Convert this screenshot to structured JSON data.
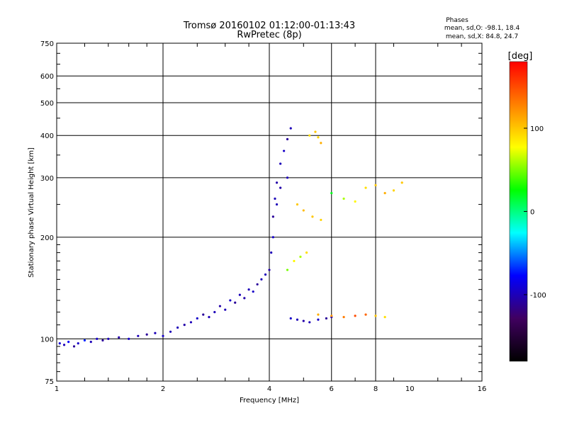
{
  "chart_data": {
    "type": "scatter",
    "title": "Tromsø 20160102 01:12:00-01:13:43",
    "subtitle": "RwPretec (8p)",
    "stats_header": "Phases",
    "stats_O": "mean, sd,O: -98.1, 18.4",
    "stats_X": "mean, sd,X:  84.8, 24.7",
    "xlabel": "Frequency [MHz]",
    "ylabel": "Stationary phase Virtual Height [km]",
    "x_scale": "log",
    "y_scale": "log",
    "xlim": [
      1,
      16
    ],
    "ylim": [
      75,
      750
    ],
    "x_ticks": [
      1,
      2,
      4,
      6,
      8,
      10,
      16
    ],
    "y_ticks": [
      75,
      100,
      200,
      300,
      400,
      500,
      600,
      750
    ],
    "x_gridlines": [
      2,
      4,
      6,
      8
    ],
    "y_gridlines": [
      100,
      200,
      300,
      400,
      500,
      600
    ],
    "colorbar": {
      "label": "[deg]",
      "range": [
        -180,
        180
      ],
      "ticks": [
        -100,
        0,
        100
      ],
      "colormap": [
        "#000000",
        "#400060",
        "#0000ff",
        "#00ffff",
        "#00ff00",
        "#ffff00",
        "#ff8000",
        "#ff0000"
      ]
    },
    "series": [
      {
        "values": [
          [
            1.02,
            97,
            -90
          ],
          [
            1.05,
            96,
            -100
          ],
          [
            1.08,
            98,
            -80
          ],
          [
            1.12,
            95,
            -110
          ],
          [
            1.15,
            97,
            -95
          ],
          [
            1.2,
            99,
            -70
          ],
          [
            1.25,
            98,
            -100
          ],
          [
            1.3,
            100,
            -95
          ],
          [
            1.35,
            99,
            -110
          ],
          [
            1.4,
            100,
            -100
          ],
          [
            1.5,
            101,
            -105
          ],
          [
            1.6,
            100,
            -95
          ],
          [
            1.7,
            102,
            -100
          ],
          [
            1.8,
            103,
            -110
          ],
          [
            1.9,
            104,
            -100
          ],
          [
            2.0,
            102,
            -95
          ],
          [
            2.1,
            105,
            -100
          ],
          [
            2.2,
            108,
            -100
          ],
          [
            2.3,
            110,
            -105
          ],
          [
            2.4,
            112,
            -100
          ],
          [
            2.5,
            115,
            -95
          ],
          [
            2.6,
            118,
            -110
          ],
          [
            2.7,
            116,
            -100
          ],
          [
            2.8,
            120,
            -100
          ],
          [
            2.9,
            125,
            -105
          ],
          [
            3.0,
            122,
            -100
          ],
          [
            3.1,
            130,
            -95
          ],
          [
            3.2,
            128,
            -110
          ],
          [
            3.3,
            135,
            -100
          ],
          [
            3.4,
            132,
            -105
          ],
          [
            3.5,
            140,
            -100
          ],
          [
            3.6,
            138,
            -95
          ],
          [
            3.7,
            145,
            -110
          ],
          [
            3.8,
            150,
            -100
          ],
          [
            3.9,
            155,
            -100
          ],
          [
            4.0,
            160,
            -105
          ],
          [
            4.05,
            180,
            -100
          ],
          [
            4.1,
            200,
            -95
          ],
          [
            4.1,
            230,
            -110
          ],
          [
            4.15,
            260,
            -100
          ],
          [
            4.2,
            290,
            -105
          ],
          [
            4.3,
            330,
            -100
          ],
          [
            4.4,
            360,
            -95
          ],
          [
            4.5,
            390,
            -110
          ],
          [
            4.6,
            420,
            -100
          ],
          [
            4.2,
            250,
            -100
          ],
          [
            4.3,
            280,
            -105
          ],
          [
            4.5,
            300,
            -100
          ]
        ]
      },
      {
        "values": [
          [
            4.6,
            115,
            -95
          ],
          [
            4.8,
            114,
            -100
          ],
          [
            5.0,
            113,
            -105
          ],
          [
            5.2,
            112,
            -100
          ],
          [
            5.5,
            114,
            -95
          ],
          [
            5.8,
            115,
            -110
          ],
          [
            6.0,
            116,
            -100
          ]
        ]
      },
      {
        "values": [
          [
            4.5,
            160,
            50
          ],
          [
            4.7,
            170,
            80
          ],
          [
            4.9,
            175,
            60
          ],
          [
            5.1,
            180,
            90
          ],
          [
            5.2,
            400,
            90
          ],
          [
            5.4,
            410,
            100
          ],
          [
            5.5,
            395,
            95
          ],
          [
            5.6,
            380,
            110
          ],
          [
            4.8,
            250,
            100
          ],
          [
            5.0,
            240,
            105
          ],
          [
            5.3,
            230,
            100
          ],
          [
            5.6,
            225,
            95
          ],
          [
            6.0,
            270,
            20
          ],
          [
            6.5,
            260,
            60
          ],
          [
            7.0,
            255,
            80
          ],
          [
            7.5,
            280,
            90
          ],
          [
            8.0,
            285,
            100
          ],
          [
            8.5,
            270,
            110
          ],
          [
            9.0,
            275,
            95
          ],
          [
            9.5,
            290,
            100
          ],
          [
            5.5,
            118,
            110
          ],
          [
            6.0,
            117,
            120
          ],
          [
            6.5,
            116,
            130
          ],
          [
            7.0,
            117,
            150
          ],
          [
            7.5,
            118,
            140
          ],
          [
            8.0,
            117,
            100
          ],
          [
            8.5,
            116,
            90
          ]
        ]
      }
    ]
  }
}
